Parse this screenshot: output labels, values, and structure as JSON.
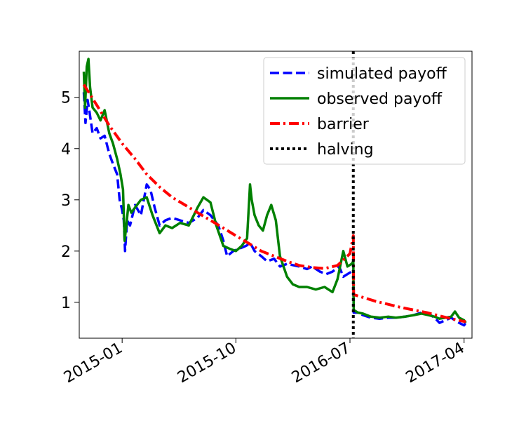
{
  "chart_data": {
    "type": "line",
    "title": "",
    "xlabel": "",
    "ylabel": "",
    "xlim": [
      "2014-09-20",
      "2017-04-20"
    ],
    "ylim": [
      0.3,
      5.9
    ],
    "yticks": [
      1,
      2,
      3,
      4,
      5
    ],
    "xticks": [
      "2015-01",
      "2015-10",
      "2016-07",
      "2017-04"
    ],
    "grid": false,
    "legend_position": "top-right",
    "series": [
      {
        "name": "simulated payoff",
        "color": "#0000ff",
        "style": "dashed",
        "points": [
          [
            "2014-10-01",
            5.1
          ],
          [
            "2014-10-05",
            4.5
          ],
          [
            "2014-10-10",
            4.95
          ],
          [
            "2014-10-15",
            4.7
          ],
          [
            "2014-10-22",
            4.3
          ],
          [
            "2014-11-01",
            4.4
          ],
          [
            "2014-11-10",
            4.2
          ],
          [
            "2014-11-20",
            4.25
          ],
          [
            "2014-12-01",
            3.9
          ],
          [
            "2014-12-10",
            3.7
          ],
          [
            "2014-12-20",
            3.5
          ],
          [
            "2014-12-26",
            3.0
          ],
          [
            "2015-01-01",
            2.8
          ],
          [
            "2015-01-05",
            2.6
          ],
          [
            "2015-01-08",
            2.0
          ],
          [
            "2015-01-13",
            2.6
          ],
          [
            "2015-01-20",
            2.5
          ],
          [
            "2015-02-01",
            2.9
          ],
          [
            "2015-02-15",
            2.7
          ],
          [
            "2015-03-01",
            3.3
          ],
          [
            "2015-03-10",
            3.2
          ],
          [
            "2015-03-20",
            2.85
          ],
          [
            "2015-04-01",
            2.5
          ],
          [
            "2015-04-15",
            2.6
          ],
          [
            "2015-05-01",
            2.65
          ],
          [
            "2015-05-20",
            2.6
          ],
          [
            "2015-06-10",
            2.55
          ],
          [
            "2015-07-01",
            2.65
          ],
          [
            "2015-07-15",
            2.8
          ],
          [
            "2015-08-01",
            2.7
          ],
          [
            "2015-08-20",
            2.5
          ],
          [
            "2015-09-01",
            2.2
          ],
          [
            "2015-09-10",
            1.9
          ],
          [
            "2015-09-25",
            2.0
          ],
          [
            "2015-10-10",
            2.05
          ],
          [
            "2015-10-25",
            2.1
          ],
          [
            "2015-11-05",
            2.15
          ],
          [
            "2015-11-15",
            2.0
          ],
          [
            "2015-12-01",
            1.9
          ],
          [
            "2015-12-15",
            1.8
          ],
          [
            "2016-01-01",
            1.85
          ],
          [
            "2016-01-15",
            1.7
          ],
          [
            "2016-02-01",
            1.75
          ],
          [
            "2016-03-01",
            1.7
          ],
          [
            "2016-03-20",
            1.65
          ],
          [
            "2016-04-01",
            1.7
          ],
          [
            "2016-04-20",
            1.6
          ],
          [
            "2016-05-05",
            1.55
          ],
          [
            "2016-05-20",
            1.6
          ],
          [
            "2016-06-05",
            1.7
          ],
          [
            "2016-06-15",
            1.5
          ],
          [
            "2016-06-25",
            1.55
          ],
          [
            "2016-07-05",
            1.6
          ],
          [
            "2016-07-09",
            1.65
          ],
          [
            "2016-07-10",
            0.8
          ],
          [
            "2016-07-20",
            0.8
          ],
          [
            "2016-08-01",
            0.75
          ],
          [
            "2016-08-20",
            0.7
          ],
          [
            "2016-09-10",
            0.68
          ],
          [
            "2016-10-01",
            0.7
          ],
          [
            "2016-10-20",
            0.7
          ],
          [
            "2016-11-10",
            0.72
          ],
          [
            "2016-12-01",
            0.75
          ],
          [
            "2016-12-20",
            0.8
          ],
          [
            "2017-01-05",
            0.78
          ],
          [
            "2017-01-20",
            0.7
          ],
          [
            "2017-02-01",
            0.6
          ],
          [
            "2017-02-15",
            0.65
          ],
          [
            "2017-03-01",
            0.7
          ],
          [
            "2017-03-10",
            0.65
          ],
          [
            "2017-03-20",
            0.6
          ],
          [
            "2017-04-01",
            0.55
          ],
          [
            "2017-04-05",
            0.6
          ]
        ]
      },
      {
        "name": "observed payoff",
        "color": "#008000",
        "style": "solid",
        "points": [
          [
            "2014-10-01",
            5.5
          ],
          [
            "2014-10-04",
            4.8
          ],
          [
            "2014-10-08",
            5.6
          ],
          [
            "2014-10-12",
            5.75
          ],
          [
            "2014-10-16",
            5.2
          ],
          [
            "2014-10-22",
            4.8
          ],
          [
            "2014-11-01",
            4.7
          ],
          [
            "2014-11-10",
            4.55
          ],
          [
            "2014-11-20",
            4.75
          ],
          [
            "2014-12-01",
            4.3
          ],
          [
            "2014-12-10",
            4.1
          ],
          [
            "2014-12-20",
            3.8
          ],
          [
            "2014-12-28",
            3.5
          ],
          [
            "2015-01-03",
            3.2
          ],
          [
            "2015-01-07",
            2.2
          ],
          [
            "2015-01-11",
            2.5
          ],
          [
            "2015-01-16",
            2.9
          ],
          [
            "2015-01-23",
            2.75
          ],
          [
            "2015-02-01",
            2.85
          ],
          [
            "2015-02-15",
            3.0
          ],
          [
            "2015-03-01",
            3.05
          ],
          [
            "2015-03-15",
            2.7
          ],
          [
            "2015-04-01",
            2.35
          ],
          [
            "2015-04-15",
            2.5
          ],
          [
            "2015-05-01",
            2.45
          ],
          [
            "2015-05-20",
            2.55
          ],
          [
            "2015-06-10",
            2.5
          ],
          [
            "2015-07-01",
            2.85
          ],
          [
            "2015-07-15",
            3.05
          ],
          [
            "2015-08-01",
            2.95
          ],
          [
            "2015-08-15",
            2.5
          ],
          [
            "2015-09-01",
            2.1
          ],
          [
            "2015-09-15",
            2.05
          ],
          [
            "2015-10-01",
            2.0
          ],
          [
            "2015-10-15",
            2.1
          ],
          [
            "2015-10-28",
            2.25
          ],
          [
            "2015-11-04",
            3.3
          ],
          [
            "2015-11-08",
            3.0
          ],
          [
            "2015-11-15",
            2.7
          ],
          [
            "2015-11-25",
            2.5
          ],
          [
            "2015-12-05",
            2.4
          ],
          [
            "2015-12-15",
            2.7
          ],
          [
            "2015-12-25",
            2.9
          ],
          [
            "2016-01-05",
            2.6
          ],
          [
            "2016-01-15",
            1.9
          ],
          [
            "2016-02-01",
            1.5
          ],
          [
            "2016-02-15",
            1.35
          ],
          [
            "2016-03-01",
            1.3
          ],
          [
            "2016-03-20",
            1.3
          ],
          [
            "2016-04-10",
            1.25
          ],
          [
            "2016-05-01",
            1.3
          ],
          [
            "2016-05-20",
            1.2
          ],
          [
            "2016-06-01",
            1.45
          ],
          [
            "2016-06-10",
            1.8
          ],
          [
            "2016-06-15",
            2.0
          ],
          [
            "2016-06-25",
            1.7
          ],
          [
            "2016-07-05",
            1.75
          ],
          [
            "2016-07-09",
            1.8
          ],
          [
            "2016-07-10",
            0.85
          ],
          [
            "2016-07-20",
            0.8
          ],
          [
            "2016-08-01",
            0.78
          ],
          [
            "2016-08-20",
            0.72
          ],
          [
            "2016-09-10",
            0.7
          ],
          [
            "2016-10-01",
            0.72
          ],
          [
            "2016-10-20",
            0.7
          ],
          [
            "2016-11-10",
            0.72
          ],
          [
            "2016-12-01",
            0.75
          ],
          [
            "2016-12-20",
            0.78
          ],
          [
            "2017-01-05",
            0.75
          ],
          [
            "2017-01-20",
            0.72
          ],
          [
            "2017-02-01",
            0.68
          ],
          [
            "2017-02-15",
            0.7
          ],
          [
            "2017-03-01",
            0.72
          ],
          [
            "2017-03-10",
            0.82
          ],
          [
            "2017-03-20",
            0.7
          ],
          [
            "2017-04-01",
            0.65
          ],
          [
            "2017-04-05",
            0.6
          ]
        ]
      },
      {
        "name": "barrier",
        "color": "#ff0000",
        "style": "dashdot",
        "points": [
          [
            "2014-10-01",
            5.25
          ],
          [
            "2014-11-01",
            4.85
          ],
          [
            "2014-12-01",
            4.45
          ],
          [
            "2015-01-01",
            4.1
          ],
          [
            "2015-02-01",
            3.8
          ],
          [
            "2015-03-01",
            3.5
          ],
          [
            "2015-04-01",
            3.25
          ],
          [
            "2015-05-01",
            3.05
          ],
          [
            "2015-06-01",
            2.9
          ],
          [
            "2015-07-01",
            2.75
          ],
          [
            "2015-08-01",
            2.6
          ],
          [
            "2015-09-01",
            2.45
          ],
          [
            "2015-10-01",
            2.3
          ],
          [
            "2015-11-01",
            2.15
          ],
          [
            "2015-12-01",
            2.0
          ],
          [
            "2016-01-01",
            1.9
          ],
          [
            "2016-02-01",
            1.8
          ],
          [
            "2016-03-01",
            1.72
          ],
          [
            "2016-04-01",
            1.68
          ],
          [
            "2016-05-01",
            1.66
          ],
          [
            "2016-06-01",
            1.72
          ],
          [
            "2016-07-01",
            1.95
          ],
          [
            "2016-07-09",
            2.3
          ],
          [
            "2016-07-10",
            1.15
          ],
          [
            "2016-09-01",
            1.02
          ],
          [
            "2016-11-01",
            0.9
          ],
          [
            "2017-01-01",
            0.8
          ],
          [
            "2017-03-01",
            0.68
          ],
          [
            "2017-04-05",
            0.62
          ]
        ]
      },
      {
        "name": "halving",
        "color": "#000000",
        "style": "dotted",
        "x": "2016-07-09"
      }
    ]
  }
}
